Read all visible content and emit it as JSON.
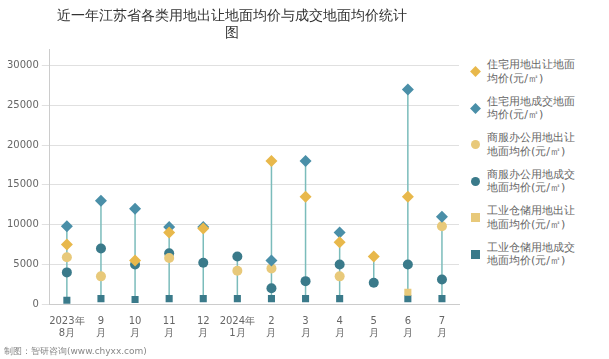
{
  "chart_data": {
    "type": "scatter",
    "title": "近一年江苏省各类用地出让地面均价与成交地面均价统计\n图",
    "categories": [
      "2023年\n8月",
      "9\n月",
      "10\n月",
      "11\n月",
      "12\n月",
      "2024年\n1月",
      "2\n月",
      "3\n月",
      "4\n月",
      "5\n月",
      "6\n月",
      "7\n月"
    ],
    "series": [
      {
        "name": "住宅用地出让地面\n均价(元/㎡)",
        "color": "#E8B84B",
        "marker": "diamond",
        "values": [
          7500,
          null,
          5500,
          9000,
          9500,
          null,
          18000,
          13500,
          7800,
          6000,
          13500,
          null
        ]
      },
      {
        "name": "住宅用地成交地面\n均价(元/㎡)",
        "color": "#4A8FA8",
        "marker": "diamond",
        "values": [
          9800,
          13000,
          12000,
          9700,
          9700,
          null,
          5500,
          18000,
          9000,
          null,
          27000,
          11000
        ]
      },
      {
        "name": "商服办公用地出让\n地面均价(元/㎡)",
        "color": "#E8C97A",
        "marker": "circle",
        "values": [
          5900,
          3500,
          null,
          5800,
          null,
          4200,
          4500,
          null,
          3500,
          null,
          null,
          9800
        ]
      },
      {
        "name": "商服办公用地成交\n地面均价(元/㎡)",
        "color": "#3A7A8A",
        "marker": "circle",
        "values": [
          4000,
          7000,
          5000,
          6400,
          5200,
          6000,
          2000,
          2900,
          5000,
          2700,
          5000,
          3100
        ]
      },
      {
        "name": "工业仓储用地出让\n地面均价(元/㎡)",
        "color": "#E8C97A",
        "marker": "square",
        "values": [
          null,
          null,
          null,
          null,
          null,
          null,
          null,
          null,
          null,
          null,
          1500,
          null
        ]
      },
      {
        "name": "工业仓储用地成交\n地面均价(元/㎡)",
        "color": "#3A7A8A",
        "marker": "square",
        "values": [
          500,
          700,
          600,
          700,
          700,
          700,
          700,
          700,
          700,
          null,
          700,
          700
        ]
      }
    ],
    "ylim": [
      0,
      32000
    ],
    "yticks": [
      0,
      5000,
      10000,
      15000,
      20000,
      25000,
      30000
    ],
    "grid": true,
    "legend": "right",
    "color": "#7BBCBB",
    "annotations": [
      "制图：智研咨询(www.chyxx.com)"
    ]
  }
}
